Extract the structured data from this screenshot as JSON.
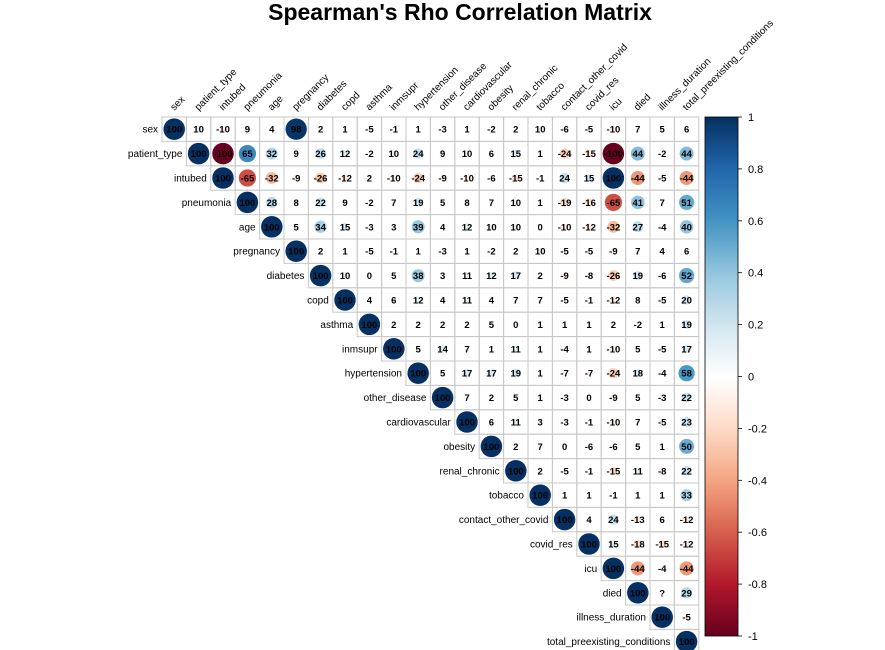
{
  "chart_data": {
    "type": "heatmap",
    "subtype": "correlation-matrix-upper",
    "title": "Spearman's Rho Correlation Matrix",
    "variables": [
      "sex",
      "patient_type",
      "intubed",
      "pneumonia",
      "age",
      "pregnancy",
      "diabetes",
      "copd",
      "asthma",
      "inmsupr",
      "hypertension",
      "other_disease",
      "cardiovascular",
      "obesity",
      "renal_chronic",
      "tobacco",
      "contact_other_covid",
      "covid_res",
      "icu",
      "died",
      "illness_duration",
      "total_preexisting_conditions"
    ],
    "matrix": [
      [
        "100",
        "10",
        "-10",
        "9",
        "4",
        "98",
        "2",
        "1",
        "-5",
        "-1",
        "1",
        "-3",
        "1",
        "-2",
        "2",
        "10",
        "-6",
        "-5",
        "-10",
        "7",
        "5",
        "6"
      ],
      [
        "",
        "100",
        "-100",
        "65",
        "32",
        "9",
        "26",
        "12",
        "-2",
        "10",
        "24",
        "9",
        "10",
        "6",
        "15",
        "1",
        "-24",
        "-15",
        "-100",
        "44",
        "-2",
        "44"
      ],
      [
        "",
        "",
        "100",
        "-65",
        "-32",
        "-9",
        "-26",
        "-12",
        "2",
        "-10",
        "-24",
        "-9",
        "-10",
        "-6",
        "-15",
        "-1",
        "24",
        "15",
        "100",
        "-44",
        "-5",
        "-44"
      ],
      [
        "",
        "",
        "",
        "100",
        "28",
        "8",
        "22",
        "9",
        "-2",
        "7",
        "19",
        "5",
        "8",
        "7",
        "10",
        "1",
        "-19",
        "-16",
        "-65",
        "41",
        "7",
        "51"
      ],
      [
        "",
        "",
        "",
        "",
        "100",
        "5",
        "34",
        "15",
        "-3",
        "3",
        "39",
        "4",
        "12",
        "10",
        "10",
        "0",
        "-10",
        "-12",
        "-32",
        "27",
        "-4",
        "40"
      ],
      [
        "",
        "",
        "",
        "",
        "",
        "100",
        "2",
        "1",
        "-5",
        "-1",
        "1",
        "-3",
        "1",
        "-2",
        "2",
        "10",
        "-5",
        "-5",
        "-9",
        "7",
        "4",
        "6"
      ],
      [
        "",
        "",
        "",
        "",
        "",
        "",
        "100",
        "10",
        "0",
        "5",
        "38",
        "3",
        "11",
        "12",
        "17",
        "2",
        "-9",
        "-8",
        "-26",
        "19",
        "-6",
        "52"
      ],
      [
        "",
        "",
        "",
        "",
        "",
        "",
        "",
        "100",
        "4",
        "6",
        "12",
        "4",
        "11",
        "4",
        "7",
        "7",
        "-5",
        "-1",
        "-12",
        "8",
        "-5",
        "20"
      ],
      [
        "",
        "",
        "",
        "",
        "",
        "",
        "",
        "",
        "100",
        "2",
        "2",
        "2",
        "2",
        "5",
        "0",
        "1",
        "1",
        "1",
        "2",
        "-2",
        "1",
        "19"
      ],
      [
        "",
        "",
        "",
        "",
        "",
        "",
        "",
        "",
        "",
        "100",
        "5",
        "14",
        "7",
        "1",
        "11",
        "1",
        "-4",
        "1",
        "-10",
        "5",
        "-5",
        "17"
      ],
      [
        "",
        "",
        "",
        "",
        "",
        "",
        "",
        "",
        "",
        "",
        "100",
        "5",
        "17",
        "17",
        "19",
        "1",
        "-7",
        "-7",
        "-24",
        "18",
        "-4",
        "58"
      ],
      [
        "",
        "",
        "",
        "",
        "",
        "",
        "",
        "",
        "",
        "",
        "",
        "100",
        "7",
        "2",
        "5",
        "1",
        "-3",
        "0",
        "-9",
        "5",
        "-3",
        "22"
      ],
      [
        "",
        "",
        "",
        "",
        "",
        "",
        "",
        "",
        "",
        "",
        "",
        "",
        "100",
        "6",
        "11",
        "3",
        "-3",
        "-1",
        "-10",
        "7",
        "-5",
        "23"
      ],
      [
        "",
        "",
        "",
        "",
        "",
        "",
        "",
        "",
        "",
        "",
        "",
        "",
        "",
        "100",
        "2",
        "7",
        "0",
        "-6",
        "-6",
        "5",
        "1",
        "50"
      ],
      [
        "",
        "",
        "",
        "",
        "",
        "",
        "",
        "",
        "",
        "",
        "",
        "",
        "",
        "",
        "100",
        "2",
        "-5",
        "-1",
        "-15",
        "11",
        "-8",
        "22"
      ],
      [
        "",
        "",
        "",
        "",
        "",
        "",
        "",
        "",
        "",
        "",
        "",
        "",
        "",
        "",
        "",
        "100",
        "1",
        "1",
        "-1",
        "1",
        "1",
        "33"
      ],
      [
        "",
        "",
        "",
        "",
        "",
        "",
        "",
        "",
        "",
        "",
        "",
        "",
        "",
        "",
        "",
        "",
        "100",
        "4",
        "24",
        "-13",
        "6",
        "-12"
      ],
      [
        "",
        "",
        "",
        "",
        "",
        "",
        "",
        "",
        "",
        "",
        "",
        "",
        "",
        "",
        "",
        "",
        "",
        "100",
        "15",
        "-18",
        "-15",
        "-12"
      ],
      [
        "",
        "",
        "",
        "",
        "",
        "",
        "",
        "",
        "",
        "",
        "",
        "",
        "",
        "",
        "",
        "",
        "",
        "",
        "100",
        "-44",
        "-4",
        "-44"
      ],
      [
        "",
        "",
        "",
        "",
        "",
        "",
        "",
        "",
        "",
        "",
        "",
        "",
        "",
        "",
        "",
        "",
        "",
        "",
        "",
        "100",
        "?",
        "29"
      ],
      [
        "",
        "",
        "",
        "",
        "",
        "",
        "",
        "",
        "",
        "",
        "",
        "",
        "",
        "",
        "",
        "",
        "",
        "",
        "",
        "",
        "100",
        "-5"
      ],
      [
        "",
        "",
        "",
        "",
        "",
        "",
        "",
        "",
        "",
        "",
        "",
        "",
        "",
        "",
        "",
        "",
        "",
        "",
        "",
        "",
        "",
        "100"
      ]
    ],
    "value_range": [
      -1,
      1
    ],
    "colorbar": {
      "ticks": [
        "-1",
        "-0.8",
        "-0.6",
        "-0.4",
        "-0.2",
        "0",
        "0.2",
        "0.4",
        "0.6",
        "0.8",
        "1"
      ],
      "colors": [
        "#67001F",
        "#B2182B",
        "#D6604D",
        "#F4A582",
        "#FDDBC7",
        "#FFFFFF",
        "#D1E5F0",
        "#92C5DE",
        "#4393C3",
        "#2166AC",
        "#053061"
      ]
    },
    "legend_position": "right",
    "grid": true
  }
}
